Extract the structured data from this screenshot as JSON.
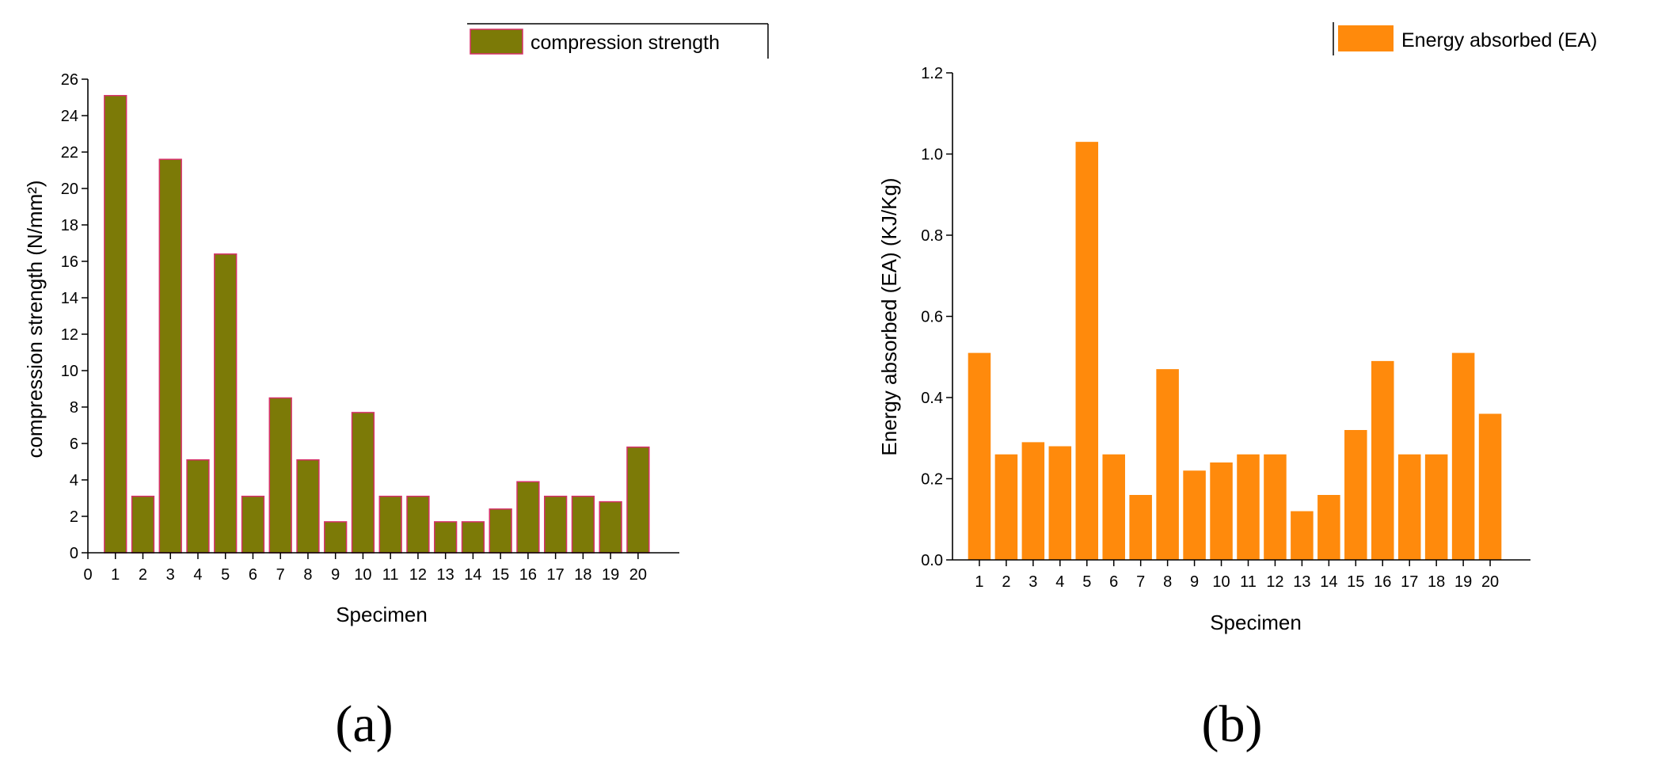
{
  "panel_labels": [
    "(a)",
    "(b)"
  ],
  "colors": {
    "olive": "#7c7a07",
    "olive_edge": "#d7306a",
    "orange": "#ff8a0c",
    "axis": "#000000"
  },
  "chart_data": [
    {
      "type": "bar",
      "title": "",
      "panel": "(a)",
      "xlabel": "Specimen",
      "ylabel": "compression strength (N/mm²)",
      "legend": "compression strength",
      "legend_position": "top-right",
      "categories": [
        "1",
        "2",
        "3",
        "4",
        "5",
        "6",
        "7",
        "8",
        "9",
        "10",
        "11",
        "12",
        "13",
        "14",
        "15",
        "16",
        "17",
        "18",
        "19",
        "20"
      ],
      "values": [
        25.1,
        3.1,
        21.6,
        5.1,
        16.4,
        3.1,
        8.5,
        5.1,
        1.7,
        7.7,
        3.1,
        3.1,
        1.7,
        1.7,
        2.4,
        3.9,
        3.1,
        3.1,
        2.8,
        5.8
      ],
      "x_ticks": [
        "0",
        "1",
        "2",
        "3",
        "4",
        "5",
        "6",
        "7",
        "8",
        "9",
        "10",
        "11",
        "12",
        "13",
        "14",
        "15",
        "16",
        "17",
        "18",
        "19",
        "20"
      ],
      "xlim": [
        0,
        21.5
      ],
      "ylim": [
        0,
        26
      ],
      "y_ticks": [
        "0",
        "2",
        "4",
        "6",
        "8",
        "10",
        "12",
        "14",
        "16",
        "18",
        "20",
        "22",
        "24",
        "26"
      ],
      "grid": false
    },
    {
      "type": "bar",
      "title": "",
      "panel": "(b)",
      "xlabel": "Specimen",
      "ylabel": "Energy absorbed (EA) (KJ/Kg)",
      "legend": "Energy absorbed (EA)",
      "legend_position": "top-right",
      "categories": [
        "1",
        "2",
        "3",
        "4",
        "5",
        "6",
        "7",
        "8",
        "9",
        "10",
        "11",
        "12",
        "13",
        "14",
        "15",
        "16",
        "17",
        "18",
        "19",
        "20"
      ],
      "values": [
        0.51,
        0.26,
        0.29,
        0.28,
        1.03,
        0.26,
        0.16,
        0.47,
        0.22,
        0.24,
        0.26,
        0.26,
        0.12,
        0.16,
        0.32,
        0.49,
        0.26,
        0.26,
        0.51,
        0.36
      ],
      "x_ticks": [
        "1",
        "2",
        "3",
        "4",
        "5",
        "6",
        "7",
        "8",
        "9",
        "10",
        "11",
        "12",
        "13",
        "14",
        "15",
        "16",
        "17",
        "18",
        "19",
        "20"
      ],
      "xlim": [
        0,
        21.5
      ],
      "ylim": [
        0,
        1.2
      ],
      "y_ticks": [
        "0.0",
        "0.2",
        "0.4",
        "0.6",
        "0.8",
        "1.0",
        "1.2"
      ],
      "grid": false
    }
  ]
}
